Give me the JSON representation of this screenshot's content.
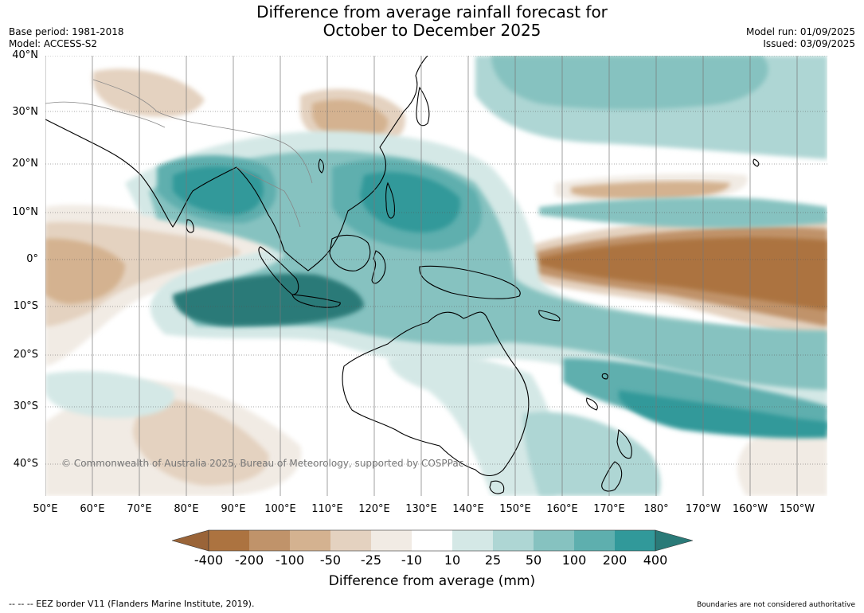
{
  "title": {
    "line1": "Difference from average rainfall forecast for",
    "line2": "October to December 2025"
  },
  "meta": {
    "base_period": "Base period: 1981-2018",
    "model": "Model: ACCESS-S2",
    "model_run": "Model run: 01/09/2025",
    "issued": "Issued: 03/09/2025"
  },
  "map": {
    "lat_labels": [
      "40°N",
      "30°N",
      "20°N",
      "10°N",
      "0°",
      "10°S",
      "20°S",
      "30°S",
      "40°S"
    ],
    "lon_labels": [
      "50°E",
      "60°E",
      "70°E",
      "80°E",
      "90°E",
      "100°E",
      "110°E",
      "120°E",
      "130°E",
      "140°E",
      "150°E",
      "160°E",
      "170°E",
      "180°",
      "170°W",
      "160°W",
      "150°W"
    ],
    "copyright": "© Commonwealth of Australia 2025, Bureau of Meteorology, supported by COSPPac",
    "colors": {
      "dry_extreme": "#9a6438",
      "dry_400": "#ac7340",
      "dry_200": "#c0936a",
      "dry_100": "#d4b290",
      "dry_50": "#e4d2c0",
      "dry_25": "#f1ebe4",
      "neutral": "#ffffff",
      "wet_10": "#d4e8e6",
      "wet_25": "#aed6d4",
      "wet_50": "#86c2c0",
      "wet_100": "#5eafae",
      "wet_200": "#31999a",
      "wet_extreme": "#2a7a78"
    }
  },
  "colorbar": {
    "ticks": [
      "-400",
      "-200",
      "-100",
      "-50",
      "-25",
      "-10",
      "10",
      "25",
      "50",
      "100",
      "200",
      "400"
    ],
    "title": "Difference from average (mm)"
  },
  "footer": {
    "eez": "--  --  -- EEZ border V11 (Flanders Marine Institute, 2019).",
    "boundaries": "Boundaries are not considered authoritative"
  }
}
